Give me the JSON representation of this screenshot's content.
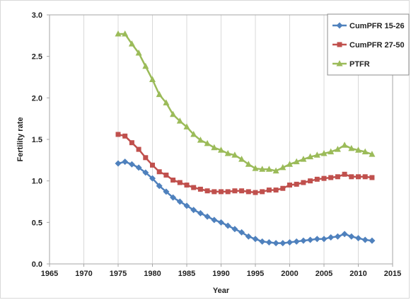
{
  "chart_data": {
    "type": "line",
    "title": "",
    "xlabel": "Year",
    "ylabel": "Fertility rate",
    "xlim": [
      1965,
      2015
    ],
    "ylim": [
      0,
      3.0
    ],
    "x_ticks": [
      "1965",
      "1970",
      "1975",
      "1980",
      "1985",
      "1990",
      "1995",
      "2000",
      "2005",
      "2010",
      "2015"
    ],
    "y_ticks": [
      "0.0",
      "0.5",
      "1.0",
      "1.5",
      "2.0",
      "2.5",
      "3.0"
    ],
    "grid": "vertical",
    "legend_position": "top-right",
    "x": [
      1975,
      1976,
      1977,
      1978,
      1979,
      1980,
      1981,
      1982,
      1983,
      1984,
      1985,
      1986,
      1987,
      1988,
      1989,
      1990,
      1991,
      1992,
      1993,
      1994,
      1995,
      1996,
      1997,
      1998,
      1999,
      2000,
      2001,
      2002,
      2003,
      2004,
      2005,
      2006,
      2007,
      2008,
      2009,
      2010,
      2011,
      2012
    ],
    "series": [
      {
        "name": "CumPFR 15-26",
        "color": "#4f81bd",
        "marker": "diamond",
        "values": [
          1.21,
          1.23,
          1.2,
          1.16,
          1.1,
          1.03,
          0.94,
          0.87,
          0.8,
          0.75,
          0.7,
          0.65,
          0.61,
          0.57,
          0.53,
          0.5,
          0.46,
          0.42,
          0.38,
          0.33,
          0.3,
          0.27,
          0.26,
          0.25,
          0.25,
          0.26,
          0.27,
          0.28,
          0.29,
          0.3,
          0.3,
          0.32,
          0.33,
          0.36,
          0.33,
          0.31,
          0.29,
          0.28
        ]
      },
      {
        "name": "CumPFR 27-50",
        "color": "#c0504d",
        "marker": "square",
        "values": [
          1.56,
          1.54,
          1.46,
          1.38,
          1.28,
          1.19,
          1.11,
          1.07,
          1.01,
          0.98,
          0.95,
          0.92,
          0.9,
          0.88,
          0.87,
          0.87,
          0.87,
          0.88,
          0.88,
          0.87,
          0.86,
          0.87,
          0.89,
          0.89,
          0.91,
          0.95,
          0.96,
          0.98,
          1.0,
          1.02,
          1.03,
          1.04,
          1.05,
          1.08,
          1.05,
          1.05,
          1.05,
          1.04
        ]
      },
      {
        "name": "PTFR",
        "color": "#9bbb59",
        "marker": "triangle",
        "values": [
          2.77,
          2.77,
          2.65,
          2.54,
          2.38,
          2.22,
          2.04,
          1.94,
          1.8,
          1.72,
          1.65,
          1.56,
          1.49,
          1.45,
          1.4,
          1.37,
          1.33,
          1.31,
          1.26,
          1.2,
          1.15,
          1.14,
          1.14,
          1.12,
          1.16,
          1.2,
          1.23,
          1.26,
          1.29,
          1.31,
          1.33,
          1.35,
          1.38,
          1.43,
          1.39,
          1.37,
          1.35,
          1.32
        ]
      }
    ]
  }
}
